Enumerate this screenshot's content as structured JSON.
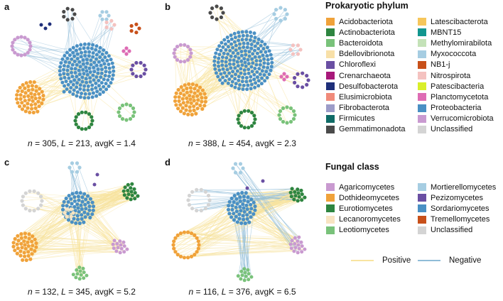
{
  "panels": [
    {
      "letter": "a",
      "n": "305",
      "L": "213",
      "avgK": "1.4"
    },
    {
      "letter": "b",
      "n": "388",
      "L": "454",
      "avgK": "2.3"
    },
    {
      "letter": "c",
      "n": "132",
      "L": "345",
      "avgK": "5.2"
    },
    {
      "letter": "d",
      "n": "116",
      "L": "376",
      "avgK": "6.5"
    }
  ],
  "caption_labels": {
    "n": "n",
    "L": "L",
    "avgK": "avgK"
  },
  "prokaryotic_legend": {
    "title": "Prokaryotic phylum",
    "col1": [
      {
        "label": "Acidobacteriota",
        "color": "#f0a23a"
      },
      {
        "label": "Actinobacteriota",
        "color": "#2e8540"
      },
      {
        "label": "Bacteroidota",
        "color": "#79c27a"
      },
      {
        "label": "Bdellovibrionota",
        "color": "#f8e0a8"
      },
      {
        "label": "Chloroflexi",
        "color": "#6a4fa3"
      },
      {
        "label": "Crenarchaeota",
        "color": "#a8187a"
      },
      {
        "label": "Desulfobacterota",
        "color": "#1f2f7a"
      },
      {
        "label": "Elusimicrobiota",
        "color": "#f08a7a"
      },
      {
        "label": "Fibrobacterota",
        "color": "#9c9cc8"
      },
      {
        "label": "Firmicutes",
        "color": "#0f6b66"
      },
      {
        "label": "Gemmatimonadota",
        "color": "#4a4a4a"
      }
    ],
    "col2": [
      {
        "label": "Latescibacterota",
        "color": "#f6c65b"
      },
      {
        "label": "MBNT15",
        "color": "#12968f"
      },
      {
        "label": "Methylomirabilota",
        "color": "#c4e2b8"
      },
      {
        "label": "Myxococcota",
        "color": "#a6cde2"
      },
      {
        "label": "NB1-j",
        "color": "#c8501a"
      },
      {
        "label": "Nitrospirota",
        "color": "#f4c2c0"
      },
      {
        "label": "Patescibacteria",
        "color": "#d9ef2a"
      },
      {
        "label": "Planctomycetota",
        "color": "#de6cb4"
      },
      {
        "label": "Proteobacteria",
        "color": "#4a90c4"
      },
      {
        "label": "Verrucomicrobiota",
        "color": "#c99ad0"
      },
      {
        "label": "Unclassified",
        "color": "#d4d4d4"
      }
    ]
  },
  "fungal_legend": {
    "title": "Fungal class",
    "col1": [
      {
        "label": "Agaricomycetes",
        "color": "#c99ad0"
      },
      {
        "label": "Dothideomycetes",
        "color": "#f0a23a"
      },
      {
        "label": "Eurotiomycetes",
        "color": "#2e8540"
      },
      {
        "label": "Lecanoromycetes",
        "color": "#f8e4c2"
      },
      {
        "label": "Leotiomycetes",
        "color": "#79c27a"
      }
    ],
    "col2": [
      {
        "label": "Mortierellomycetes",
        "color": "#a6cde2"
      },
      {
        "label": "Pezizomycetes",
        "color": "#6a4fa3"
      },
      {
        "label": "Sordariomycetes",
        "color": "#4a90c4"
      },
      {
        "label": "Tremellomycetes",
        "color": "#c8501a"
      },
      {
        "label": "Unclassified",
        "color": "#d4d4d4"
      }
    ]
  },
  "edge_legend": {
    "positive_label": "Positive",
    "positive_color": "#f8e4a0",
    "negative_label": "Negative",
    "negative_color": "#8fbcd8"
  }
}
